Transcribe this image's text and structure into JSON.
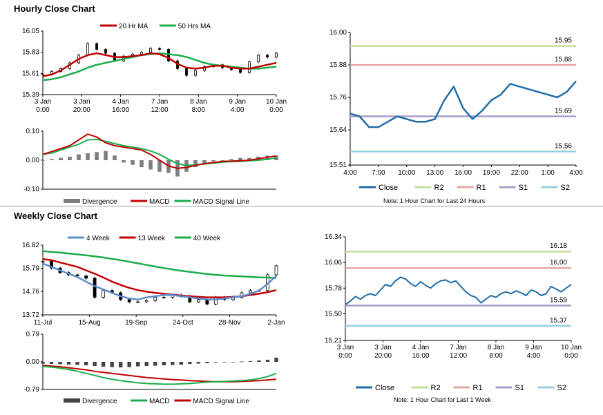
{
  "sections": {
    "hourly_title": "Hourly Close Chart",
    "weekly_title": "Weekly Close Chart"
  },
  "notes": {
    "hourly": "Note: 1 Hour Chart for Last 24 Hours",
    "weekly": "Note: 1 Hour Chart for Last 1 Week"
  },
  "colors": {
    "red": "#c00000",
    "green": "#1aac4a",
    "blue": "#5b8ccc",
    "close": "#1f6ca8",
    "r2": "#c4df9b",
    "r1": "#e5a7a5",
    "s1": "#a99bc9",
    "s2": "#94cfdc",
    "bars": "#7f7f7f",
    "grid": "#d0d0d0"
  },
  "chart_data": [
    {
      "id": "hourly_price",
      "type": "candlestick",
      "yticks": [
        "16.05",
        "15.83",
        "15.61",
        "15.39"
      ],
      "ylim": [
        15.39,
        16.05
      ],
      "xticks": [
        [
          "3 Jan",
          "0:00"
        ],
        [
          "3 Jan",
          "20:00"
        ],
        [
          "4 Jan",
          "16:00"
        ],
        [
          "7 Jan",
          "12:00"
        ],
        [
          "8 Jan",
          "8:00"
        ],
        [
          "9 Jan",
          "4:00"
        ],
        [
          "10 Jan",
          "0:00"
        ]
      ],
      "series": [
        {
          "name": "20 Hr MA",
          "values": [
            15.58,
            15.6,
            15.64,
            15.7,
            15.76,
            15.8,
            15.82,
            15.8,
            15.78,
            15.78,
            15.79,
            15.8,
            15.82,
            15.81,
            15.77,
            15.71,
            15.67,
            15.66,
            15.67,
            15.69,
            15.69,
            15.67,
            15.66,
            15.66,
            15.68,
            15.7,
            15.72
          ]
        },
        {
          "name": "50 Hrs MA",
          "values": [
            15.54,
            15.55,
            15.57,
            15.6,
            15.63,
            15.67,
            15.7,
            15.72,
            15.74,
            15.76,
            15.78,
            15.8,
            15.81,
            15.82,
            15.81,
            15.8,
            15.78,
            15.75,
            15.72,
            15.7,
            15.69,
            15.68,
            15.67,
            15.66,
            15.66,
            15.67,
            15.68
          ]
        }
      ],
      "close": [
        15.6,
        15.63,
        15.66,
        15.72,
        15.8,
        15.92,
        15.86,
        15.82,
        15.74,
        15.79,
        15.81,
        15.83,
        15.87,
        15.86,
        15.74,
        15.66,
        15.59,
        15.64,
        15.68,
        15.7,
        15.67,
        15.65,
        15.62,
        15.73,
        15.8,
        15.78,
        15.82
      ]
    },
    {
      "id": "hourly_macd",
      "type": "line+bar",
      "yticks": [
        "0.10",
        "0.00",
        "-0.10"
      ],
      "ylim": [
        -0.1,
        0.1
      ],
      "series": [
        {
          "name": "Divergence",
          "values": [
            0.0,
            0.001,
            0.002,
            0.003,
            0.005,
            0.006,
            0.007,
            0.008,
            0.004,
            -0.002,
            -0.004,
            -0.006,
            -0.008,
            -0.01,
            -0.011,
            -0.014,
            -0.01,
            -0.006,
            -0.003,
            -0.001,
            0.0,
            0.001,
            0.002,
            0.002,
            0.003,
            0.004,
            0.004
          ]
        },
        {
          "name": "MACD",
          "values": [
            0.02,
            0.03,
            0.04,
            0.05,
            0.07,
            0.09,
            0.08,
            0.06,
            0.05,
            0.045,
            0.04,
            0.035,
            0.02,
            0.0,
            -0.02,
            -0.028,
            -0.025,
            -0.018,
            -0.012,
            -0.008,
            -0.004,
            -0.003,
            -0.002,
            0.0,
            0.005,
            0.01,
            0.015
          ]
        },
        {
          "name": "MACD Signal Line",
          "values": [
            0.02,
            0.025,
            0.035,
            0.045,
            0.055,
            0.07,
            0.072,
            0.065,
            0.057,
            0.05,
            0.045,
            0.04,
            0.032,
            0.02,
            0.003,
            -0.012,
            -0.018,
            -0.016,
            -0.013,
            -0.01,
            -0.007,
            -0.005,
            -0.004,
            -0.002,
            0.0,
            0.003,
            0.008
          ]
        }
      ]
    },
    {
      "id": "hourly_24h",
      "type": "line",
      "yticks": [
        "16.00",
        "15.88",
        "15.76",
        "15.64",
        "15.51"
      ],
      "ylim": [
        15.51,
        16.0
      ],
      "xticks": [
        "4:00",
        "7:00",
        "10:00",
        "13:00",
        "16:00",
        "19:00",
        "22:00",
        "1:00",
        "4:00"
      ],
      "levels": {
        "R2": "15.95",
        "R1": "15.88",
        "S1": "15.69",
        "S2": "15.56"
      },
      "series": [
        {
          "name": "Close",
          "values": [
            15.7,
            15.69,
            15.65,
            15.65,
            15.67,
            15.69,
            15.68,
            15.67,
            15.67,
            15.68,
            15.75,
            15.8,
            15.72,
            15.68,
            15.71,
            15.75,
            15.77,
            15.81,
            15.8,
            15.79,
            15.78,
            15.77,
            15.76,
            15.78,
            15.82
          ]
        }
      ]
    },
    {
      "id": "weekly_price",
      "type": "candlestick",
      "yticks": [
        "16.82",
        "15.79",
        "14.76",
        "13.72"
      ],
      "ylim": [
        13.72,
        16.82
      ],
      "xticks": [
        "11-Jul",
        "15-Aug",
        "19-Sep",
        "24-Oct",
        "28-Nov",
        "2-Jan"
      ],
      "series": [
        {
          "name": "4 Week",
          "values": [
            16.0,
            15.85,
            15.7,
            15.55,
            15.4,
            15.2,
            15.0,
            14.85,
            14.7,
            14.55,
            14.45,
            14.4,
            14.5,
            14.55,
            14.6,
            14.6,
            14.55,
            14.5,
            14.45,
            14.4,
            14.4,
            14.45,
            14.5,
            14.55,
            14.65,
            14.8,
            15.1,
            15.45
          ]
        },
        {
          "name": "13 Week",
          "values": [
            16.2,
            16.15,
            16.05,
            15.95,
            15.85,
            15.7,
            15.55,
            15.38,
            15.2,
            15.05,
            14.92,
            14.82,
            14.75,
            14.7,
            14.66,
            14.62,
            14.58,
            14.55,
            14.52,
            14.5,
            14.5,
            14.5,
            14.52,
            14.55,
            14.6,
            14.66,
            14.73,
            14.82
          ]
        },
        {
          "name": "40 Week",
          "values": [
            16.55,
            16.52,
            16.49,
            16.45,
            16.41,
            16.37,
            16.32,
            16.27,
            16.21,
            16.15,
            16.08,
            16.01,
            15.94,
            15.87,
            15.8,
            15.74,
            15.68,
            15.63,
            15.58,
            15.54,
            15.5,
            15.47,
            15.45,
            15.43,
            15.41,
            15.39,
            15.38,
            15.36
          ]
        }
      ],
      "close": [
        16.1,
        15.8,
        15.6,
        15.5,
        15.45,
        15.35,
        14.5,
        14.8,
        14.7,
        14.4,
        14.3,
        14.3,
        14.35,
        14.5,
        14.5,
        14.6,
        14.55,
        14.3,
        14.4,
        14.2,
        14.5,
        14.4,
        14.5,
        14.7,
        14.8,
        14.8,
        15.5,
        15.9
      ]
    },
    {
      "id": "weekly_macd",
      "type": "line+bar",
      "yticks": [
        "0.79",
        "0.00",
        "-0.79"
      ],
      "ylim": [
        -0.79,
        0.79
      ],
      "series": [
        {
          "name": "Divergence",
          "values": [
            -0.05,
            -0.06,
            -0.07,
            -0.08,
            -0.09,
            -0.1,
            -0.12,
            -0.14,
            -0.15,
            -0.16,
            -0.15,
            -0.13,
            -0.12,
            -0.11,
            -0.1,
            -0.09,
            -0.08,
            -0.06,
            -0.05,
            -0.04,
            -0.02,
            -0.01,
            0.0,
            0.01,
            0.02,
            0.04,
            0.06,
            0.12
          ]
        },
        {
          "name": "MACD",
          "values": [
            -0.13,
            -0.15,
            -0.18,
            -0.22,
            -0.27,
            -0.33,
            -0.39,
            -0.45,
            -0.5,
            -0.54,
            -0.57,
            -0.6,
            -0.62,
            -0.63,
            -0.64,
            -0.64,
            -0.63,
            -0.62,
            -0.6,
            -0.58,
            -0.57,
            -0.56,
            -0.55,
            -0.54,
            -0.52,
            -0.48,
            -0.42,
            -0.33
          ]
        },
        {
          "name": "MACD Signal Line",
          "values": [
            -0.1,
            -0.12,
            -0.14,
            -0.17,
            -0.2,
            -0.23,
            -0.27,
            -0.3,
            -0.33,
            -0.36,
            -0.39,
            -0.42,
            -0.45,
            -0.47,
            -0.49,
            -0.51,
            -0.52,
            -0.54,
            -0.55,
            -0.56,
            -0.57,
            -0.57,
            -0.57,
            -0.56,
            -0.55,
            -0.54,
            -0.52,
            -0.5
          ]
        }
      ]
    },
    {
      "id": "weekly_1w",
      "type": "line",
      "yticks": [
        "16.34",
        "16.06",
        "15.78",
        "15.50",
        "15.21"
      ],
      "ylim": [
        15.21,
        16.34
      ],
      "xticks": [
        [
          "3 Jan",
          "0:00"
        ],
        [
          "3 Jan",
          "20:00"
        ],
        [
          "4 Jan",
          "16:00"
        ],
        [
          "7 Jan",
          "12:00"
        ],
        [
          "8 Jan",
          "8:00"
        ],
        [
          "9 Jan",
          "4:00"
        ],
        [
          "10 Jan",
          "0:00"
        ]
      ],
      "levels": {
        "R2": "16.18",
        "R1": "16.00",
        "S1": "15.59",
        "S2": "15.37"
      },
      "series": [
        {
          "name": "Close",
          "values": [
            15.6,
            15.64,
            15.69,
            15.66,
            15.7,
            15.72,
            15.7,
            15.76,
            15.82,
            15.8,
            15.86,
            15.9,
            15.88,
            15.83,
            15.8,
            15.85,
            15.81,
            15.78,
            15.83,
            15.86,
            15.87,
            15.84,
            15.86,
            15.8,
            15.74,
            15.7,
            15.68,
            15.62,
            15.66,
            15.7,
            15.68,
            15.72,
            15.74,
            15.72,
            15.75,
            15.73,
            15.7,
            15.76,
            15.74,
            15.7,
            15.72,
            15.8,
            15.77,
            15.74,
            15.78,
            15.82
          ]
        }
      ]
    }
  ],
  "legends": {
    "hourly_price": [
      "20 Hr MA",
      "50 Hrs MA"
    ],
    "hourly_macd": [
      "Divergence",
      "MACD",
      "MACD Signal Line"
    ],
    "hourly_24h": [
      "Close",
      "R2",
      "R1",
      "S1",
      "S2"
    ],
    "weekly_price": [
      "4 Week",
      "13 Week",
      "40 Week"
    ],
    "weekly_macd": [
      "Divergence",
      "MACD",
      "MACD Signal Line"
    ],
    "weekly_1w": [
      "Close",
      "R2",
      "R1",
      "S1",
      "S2"
    ]
  }
}
